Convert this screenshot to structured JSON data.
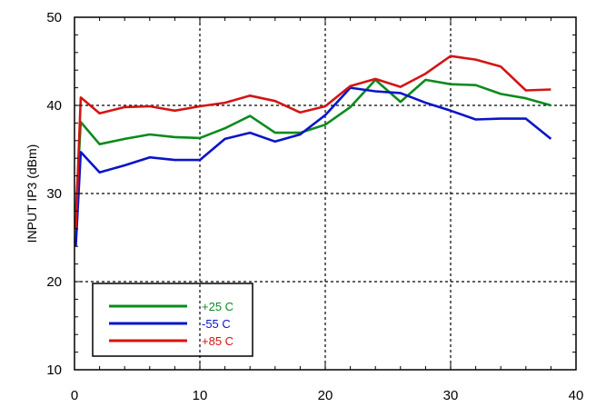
{
  "chart_data": {
    "type": "line",
    "title": "",
    "xlabel": "",
    "ylabel": "INPUT IP3 (dBm)",
    "xlim": [
      0,
      40
    ],
    "ylim": [
      10,
      50
    ],
    "xticks": [
      0,
      10,
      20,
      30,
      40
    ],
    "yticks": [
      10,
      20,
      30,
      40,
      50
    ],
    "grid": true,
    "legend_position": "bottom-left",
    "series": [
      {
        "name": "+25 C",
        "color": "#0b8a1e",
        "x": [
          0.1,
          0.5,
          2,
          4,
          6,
          8,
          10,
          12,
          14,
          16,
          18,
          20,
          22,
          24,
          26,
          28,
          30,
          32,
          34,
          36,
          38
        ],
        "y": [
          28.0,
          38.1,
          35.6,
          36.2,
          36.7,
          36.4,
          36.3,
          37.4,
          38.8,
          36.9,
          36.9,
          37.8,
          39.8,
          42.9,
          40.4,
          42.9,
          42.4,
          42.3,
          41.3,
          40.8,
          40.0
        ]
      },
      {
        "name": "-55 C",
        "color": "#0a14c8",
        "x": [
          0.1,
          0.5,
          2,
          4,
          6,
          8,
          10,
          12,
          14,
          16,
          18,
          20,
          22,
          24,
          26,
          28,
          30,
          32,
          34,
          36,
          38
        ],
        "y": [
          24.0,
          34.7,
          32.4,
          33.2,
          34.1,
          33.8,
          33.8,
          36.2,
          36.9,
          35.9,
          36.7,
          38.9,
          42.0,
          41.6,
          41.4,
          40.3,
          39.4,
          38.4,
          38.5,
          38.5,
          36.2
        ]
      },
      {
        "name": "+85 C",
        "color": "#d41414",
        "x": [
          0.1,
          0.5,
          2,
          4,
          6,
          8,
          10,
          12,
          14,
          16,
          18,
          20,
          22,
          24,
          26,
          28,
          30,
          32,
          34,
          36,
          38
        ],
        "y": [
          26.0,
          40.9,
          39.1,
          39.8,
          39.9,
          39.4,
          39.9,
          40.3,
          41.1,
          40.5,
          39.2,
          39.9,
          42.2,
          43.0,
          42.1,
          43.6,
          45.6,
          45.2,
          44.4,
          41.7,
          41.8
        ]
      }
    ]
  }
}
